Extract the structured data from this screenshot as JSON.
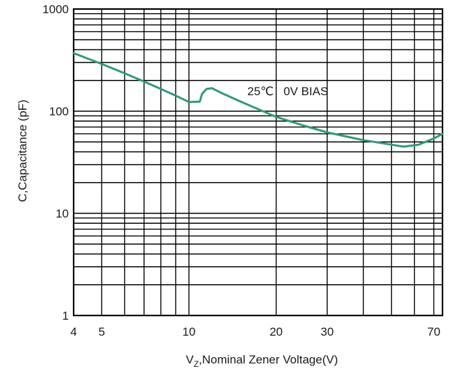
{
  "chart_data": {
    "type": "line",
    "xlabel_main": "V",
    "xlabel_sub": "Z",
    "xlabel_rest": ",Nominal Zener Voltage(V)",
    "ylabel": "C,Capacitance (pF)",
    "xscale": "log",
    "yscale": "log",
    "xlim": [
      4,
      75
    ],
    "ylim": [
      1,
      1000
    ],
    "x_ticks": [
      4,
      5,
      10,
      20,
      30,
      70
    ],
    "x_tick_labels": [
      "4",
      "5",
      "10",
      "20",
      "30",
      "70"
    ],
    "y_ticks": [
      1,
      10,
      100,
      1000
    ],
    "y_tick_labels": [
      "1",
      "10",
      "100",
      "1000"
    ],
    "x_gridlines": [
      4,
      5,
      6,
      7,
      8,
      9,
      10,
      20,
      30,
      40,
      50,
      60,
      70,
      75
    ],
    "y_gridlines": [
      1,
      2,
      3,
      4,
      5,
      6,
      7,
      8,
      9,
      10,
      20,
      30,
      40,
      50,
      60,
      70,
      80,
      90,
      100,
      200,
      300,
      400,
      500,
      600,
      700,
      800,
      900,
      1000
    ],
    "grid": true,
    "annotation": "25℃   0V BIAS",
    "series": [
      {
        "color": "#2e9a7e",
        "x": [
          4.0,
          5.0,
          6.0,
          7.0,
          8.0,
          9.0,
          10.0,
          10.9,
          11.1,
          11.5,
          12.0,
          13.0,
          15.0,
          20.0,
          25.0,
          30.0,
          40.0,
          50.0,
          55.0,
          62.0,
          70.0,
          75.0
        ],
        "y": [
          370,
          290,
          235,
          195,
          165,
          142,
          123,
          124,
          148,
          165,
          168,
          150,
          125,
          88,
          72,
          62,
          52,
          47,
          45,
          47,
          54,
          60
        ]
      }
    ]
  }
}
